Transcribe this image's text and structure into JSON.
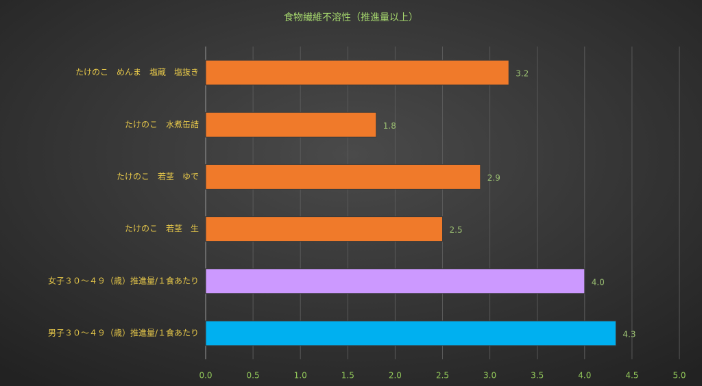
{
  "chart_data": {
    "type": "barh",
    "title": "食物繊維不溶性（推進量以上）",
    "categories": [
      "たけのこ　めんま　塩蔵　塩抜き",
      "たけのこ　水煮缶詰",
      "たけのこ　若茎　ゆで",
      "たけのこ　若茎　生",
      "女子３０～４９（歳）推進量/１食あたり",
      "男子３０～４９（歳）推進量/１食あたり"
    ],
    "values": [
      3.2,
      1.8,
      2.9,
      2.5,
      4.0,
      4.33
    ],
    "value_labels": [
      "3.2",
      "1.8",
      "2.9",
      "2.5",
      "4.0",
      "4.3"
    ],
    "colors": [
      "#f07a2a",
      "#f07a2a",
      "#f07a2a",
      "#f07a2a",
      "#cc99ff",
      "#00b0f0"
    ],
    "xlim": [
      0,
      5
    ],
    "xticks": [
      {
        "value": 0,
        "label": "0.0"
      },
      {
        "value": 0.5,
        "label": "0.5"
      },
      {
        "value": 1,
        "label": "1.0"
      },
      {
        "value": 1.5,
        "label": "1.5"
      },
      {
        "value": 2,
        "label": "2.0"
      },
      {
        "value": 2.5,
        "label": "2.5"
      },
      {
        "value": 3,
        "label": "3.0"
      },
      {
        "value": 3.5,
        "label": "3.5"
      },
      {
        "value": 4,
        "label": "4.0"
      },
      {
        "value": 4.5,
        "label": "4.5"
      },
      {
        "value": 5,
        "label": "5.0"
      }
    ],
    "grid": true
  }
}
